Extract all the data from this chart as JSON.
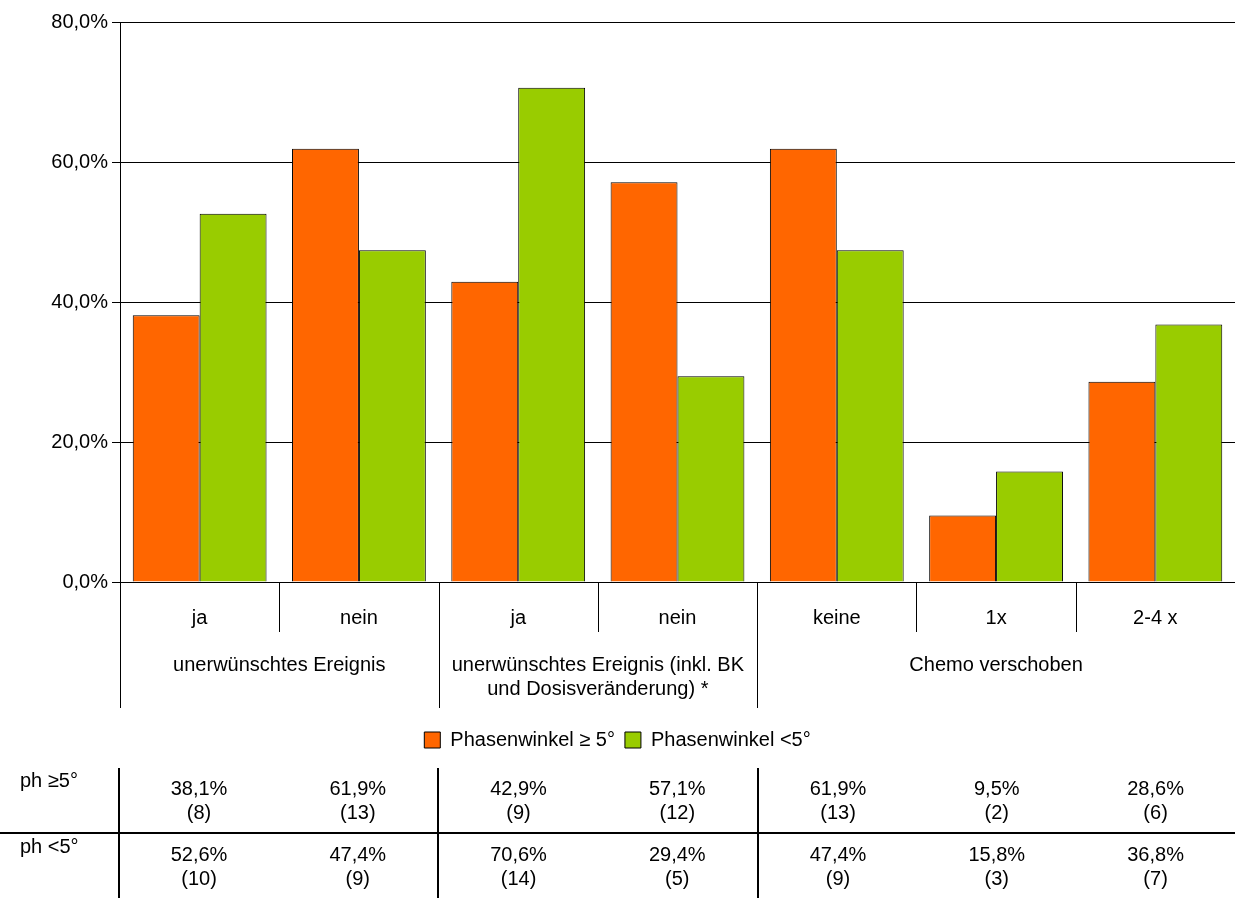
{
  "chart_data": {
    "type": "bar",
    "categories": [
      "ja",
      "nein",
      "ja",
      "nein",
      "keine",
      "1x",
      "2-4 x"
    ],
    "series": [
      {
        "name": "Phasenwinkel ≥ 5°",
        "color": "#ff6600",
        "values": [
          38.1,
          61.9,
          42.9,
          57.1,
          61.9,
          9.5,
          28.6
        ],
        "value_labels": [
          "38,1%\n(8)",
          "61,9%\n(13)",
          "42,9%\n(9)",
          "57,1%\n(12)",
          "61,9%\n(13)",
          "9,5%\n(2)",
          "28,6%\n(6)"
        ]
      },
      {
        "name": "Phasenwinkel <5°",
        "color": "#99cc00",
        "values": [
          52.6,
          47.4,
          70.6,
          29.4,
          47.4,
          15.8,
          36.8
        ],
        "value_labels": [
          "52,6%\n(10)",
          "47,4%\n(9)",
          "70,6%\n(14)",
          "29,4%\n(5)",
          "47,4%\n(9)",
          "15,8%\n(3)",
          "36,8%\n(7)"
        ]
      }
    ],
    "ylim": [
      0,
      80
    ],
    "yticks": [
      {
        "value": 0,
        "label": "0,0%"
      },
      {
        "value": 20,
        "label": "20,0%"
      },
      {
        "value": 40,
        "label": "40,0%"
      },
      {
        "value": 60,
        "label": "60,0%"
      },
      {
        "value": 80,
        "label": "80,0%"
      }
    ],
    "grid": "y",
    "legend": "bottom",
    "annotations": [
      "unerwünschtes Ereignis",
      "unerwünschtes Ereignis (inkl. BK und Dosisveränderung) *",
      "Chemo verschoben",
      "ph ≥5°",
      "ph <5°"
    ]
  }
}
